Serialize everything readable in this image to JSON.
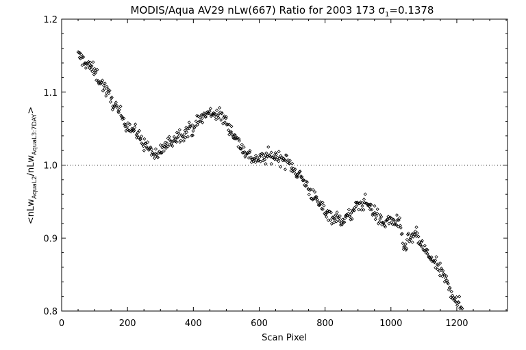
{
  "chart_data": {
    "type": "scatter",
    "title": {
      "main": "MODIS/Aqua AV29 nLw(667) Ratio for 2003 173 ",
      "sigma": "σ",
      "sigma_sub": "1",
      "sigma_value": "=0.1378"
    },
    "xlabel": "Scan Pixel",
    "ylabel": {
      "lt": "<",
      "p1": "nLw",
      "s1": "AquaL2",
      "slash": "/",
      "p2": "nLw",
      "s2": "AquaL3:7DAY",
      "gt": ">"
    },
    "xlim": [
      0,
      1354
    ],
    "ylim": [
      0.8,
      1.2
    ],
    "xticks": [
      0,
      200,
      400,
      600,
      800,
      1000,
      1200
    ],
    "xtick_labels": [
      "0",
      "200",
      "400",
      "600",
      "800",
      "1000",
      "1200"
    ],
    "yticks": [
      0.8,
      0.9,
      1.0,
      1.1,
      1.2
    ],
    "ytick_labels": [
      "0.8",
      "0.9",
      "1.0",
      "1.1",
      "1.2"
    ],
    "reference_line": 1.0,
    "marker": "diamond",
    "point_spacing": 2,
    "point_spread": 0.006,
    "trend": {
      "x": [
        50,
        75,
        100,
        125,
        150,
        175,
        200,
        225,
        250,
        275,
        290,
        300,
        325,
        350,
        375,
        400,
        425,
        450,
        475,
        500,
        525,
        550,
        575,
        600,
        625,
        650,
        675,
        700,
        725,
        750,
        775,
        800,
        825,
        850,
        875,
        900,
        925,
        950,
        975,
        1000,
        1025,
        1040,
        1050,
        1075,
        1100,
        1125,
        1150,
        1175,
        1200,
        1222
      ],
      "y": [
        1.15,
        1.14,
        1.128,
        1.11,
        1.09,
        1.072,
        1.055,
        1.045,
        1.03,
        1.018,
        1.008,
        1.02,
        1.03,
        1.04,
        1.045,
        1.052,
        1.065,
        1.072,
        1.07,
        1.06,
        1.04,
        1.022,
        1.01,
        1.008,
        1.012,
        1.012,
        1.008,
        0.998,
        0.985,
        0.968,
        0.95,
        0.938,
        0.928,
        0.925,
        0.93,
        0.945,
        0.95,
        0.935,
        0.92,
        0.925,
        0.92,
        0.885,
        0.895,
        0.905,
        0.885,
        0.87,
        0.855,
        0.835,
        0.812,
        0.8
      ]
    }
  }
}
